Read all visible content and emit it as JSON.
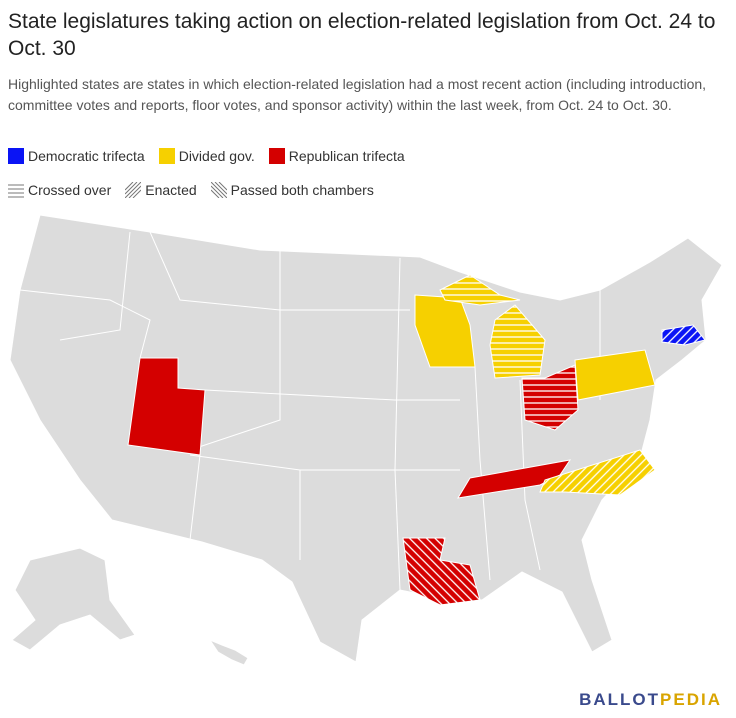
{
  "title": "State legislatures taking action on election-related legislation from Oct. 24 to Oct. 30",
  "subtitle": "Highlighted states are states in which election-related legislation had a most recent action (including introduction, committee votes and reports, floor votes, and sponsor activity) within the last week, from Oct. 24 to Oct. 30.",
  "legend": {
    "parties": [
      {
        "label": "Democratic trifecta",
        "color": "#0a14f5"
      },
      {
        "label": "Divided gov.",
        "color": "#f6d000"
      },
      {
        "label": "Republican trifecta",
        "color": "#d40000"
      }
    ],
    "statuses": [
      {
        "label": "Crossed over"
      },
      {
        "label": "Enacted"
      },
      {
        "label": "Passed both chambers"
      }
    ]
  },
  "logo": [
    "BALLOT",
    "PEDIA"
  ]
}
